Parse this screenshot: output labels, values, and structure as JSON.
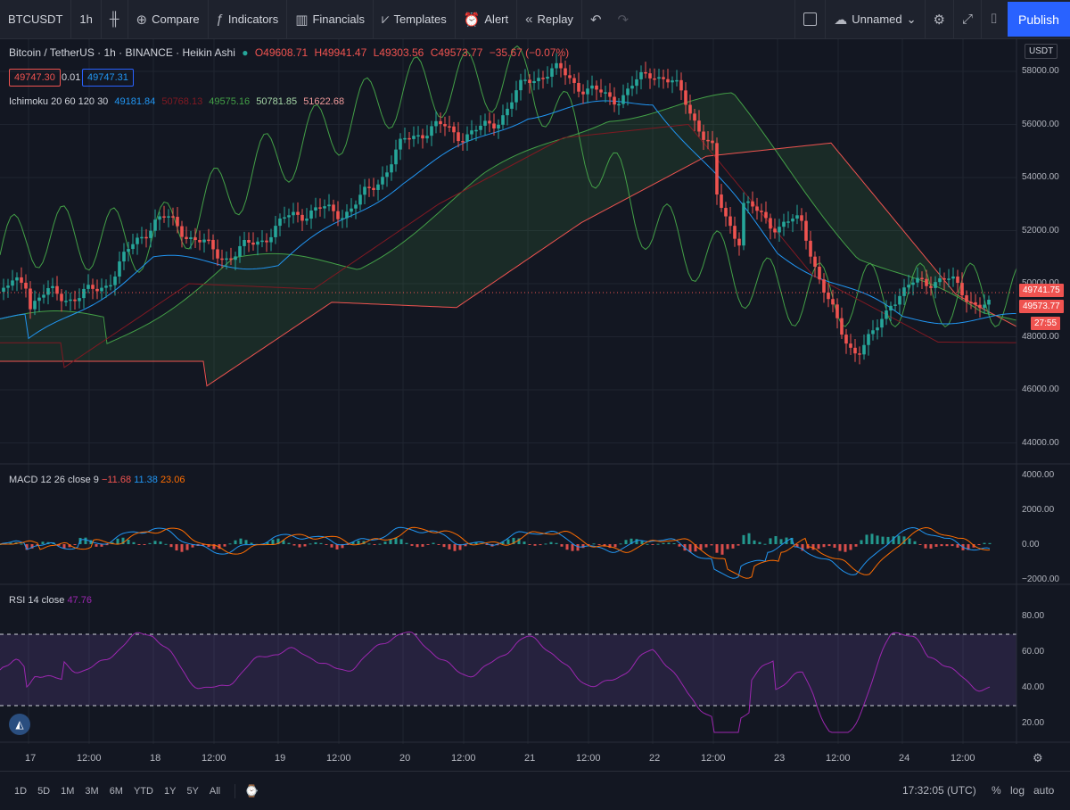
{
  "toolbar": {
    "symbol": "BTCUSDT",
    "interval": "1h",
    "compare": "Compare",
    "indicators": "Indicators",
    "financials": "Financials",
    "templates": "Templates",
    "alert": "Alert",
    "replay": "Replay",
    "layout_name": "Unnamed",
    "publish": "Publish"
  },
  "legend": {
    "title": "Bitcoin / TetherUS · 1h · BINANCE · Heikin Ashi",
    "open": "O49608.71",
    "high": "H49941.47",
    "low": "L49303.56",
    "close": "C49573.77",
    "change": "−35.67 (−0.07%)",
    "sell_price": "49747.30",
    "spread": "0.01",
    "buy_price": "49747.31",
    "ichimoku_label": "Ichimoku 20 60 120 30",
    "ichimoku_v1": "49181.84",
    "ichimoku_v2": "50768.13",
    "ichimoku_v3": "49575.16",
    "ichimoku_v4": "50781.85",
    "ichimoku_v5": "51622.68"
  },
  "macd": {
    "label": "MACD 12 26 close 9",
    "v1": "−11.68",
    "v2": "11.38",
    "v3": "23.06"
  },
  "rsi": {
    "label": "RSI 14 close",
    "value": "47.76"
  },
  "price_scale": {
    "currency": "USDT",
    "ticks": [
      "58000.00",
      "56000.00",
      "54000.00",
      "52000.00",
      "50000.00",
      "48000.00",
      "46000.00",
      "44000.00"
    ],
    "last_tag_1": "49741.75",
    "last_tag_2": "49573.77",
    "countdown": "27:55"
  },
  "macd_scale": {
    "ticks": [
      "4000.00",
      "2000.00",
      "0.00",
      "−2000.00"
    ]
  },
  "rsi_scale": {
    "ticks": [
      "80.00",
      "60.00",
      "40.00",
      "20.00"
    ]
  },
  "time_axis": [
    "17",
    "12:00",
    "18",
    "12:00",
    "19",
    "12:00",
    "20",
    "12:00",
    "21",
    "12:00",
    "22",
    "12:00",
    "23",
    "12:00",
    "24",
    "12:00"
  ],
  "bottom": {
    "ranges": [
      "1D",
      "5D",
      "1M",
      "3M",
      "6M",
      "YTD",
      "1Y",
      "5Y",
      "All"
    ],
    "clock": "17:32:05 (UTC)",
    "percent": "%",
    "log": "log",
    "auto": "auto"
  },
  "chart_data": {
    "type": "line",
    "x": [
      "17",
      "18",
      "19",
      "20",
      "21",
      "22",
      "23",
      "24"
    ],
    "series": [
      {
        "values": [
          48600,
          51800,
          51600,
          54800,
          57300,
          57800,
          52100,
          49600
        ]
      }
    ],
    "ylim": [
      43600,
      59000
    ],
    "grid": true
  },
  "colors": {
    "up": "#26a69a",
    "down": "#ef5350",
    "accent": "#2962ff",
    "rsi": "#9c27b0"
  }
}
